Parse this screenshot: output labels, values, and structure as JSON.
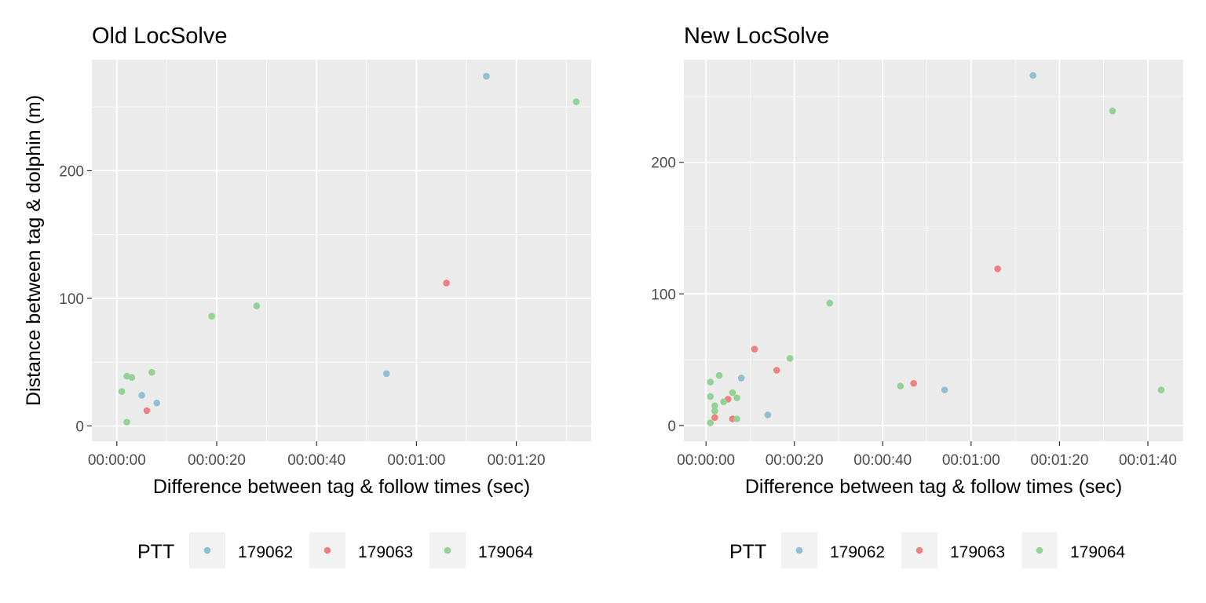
{
  "chart_data": [
    {
      "type": "scatter",
      "title": "Old LocSolve",
      "xlabel": "Difference between tag & follow times (sec)",
      "ylabel": "Distance between tag & dolphin (m)",
      "xlim": [
        -5,
        95
      ],
      "ylim": [
        -12,
        287
      ],
      "x_ticks": [
        0,
        20,
        40,
        60,
        80
      ],
      "x_tick_labels": [
        "00:00:00",
        "00:00:20",
        "00:00:40",
        "00:01:00",
        "00:01:20"
      ],
      "y_ticks": [
        0,
        100,
        200
      ],
      "y_tick_labels": [
        "0",
        "100",
        "200"
      ],
      "grid": true,
      "series": [
        {
          "name": "179062",
          "color": "#92bfd0",
          "points": [
            [
              74,
              274
            ],
            [
              54,
              41
            ],
            [
              5,
              24
            ],
            [
              8,
              18
            ]
          ]
        },
        {
          "name": "179063",
          "color": "#ef8080",
          "points": [
            [
              66,
              112
            ],
            [
              6,
              12
            ]
          ]
        },
        {
          "name": "179064",
          "color": "#93d294",
          "points": [
            [
              92,
              254
            ],
            [
              28,
              94
            ],
            [
              19,
              86
            ],
            [
              7,
              42
            ],
            [
              2,
              39
            ],
            [
              3,
              38
            ],
            [
              1,
              27
            ],
            [
              2,
              3
            ]
          ]
        }
      ]
    },
    {
      "type": "scatter",
      "title": "New LocSolve",
      "xlabel": "Difference between tag & follow times (sec)",
      "ylabel": "",
      "xlim": [
        -5,
        108
      ],
      "ylim": [
        -12,
        278
      ],
      "x_ticks": [
        0,
        20,
        40,
        60,
        80,
        100
      ],
      "x_tick_labels": [
        "00:00:00",
        "00:00:20",
        "00:00:40",
        "00:01:00",
        "00:01:20",
        "00:01:40"
      ],
      "y_ticks": [
        0,
        100,
        200
      ],
      "y_tick_labels": [
        "0",
        "100",
        "200"
      ],
      "grid": true,
      "series": [
        {
          "name": "179062",
          "color": "#92bfd0",
          "points": [
            [
              74,
              266
            ],
            [
              54,
              27
            ],
            [
              8,
              36
            ],
            [
              14,
              8
            ]
          ]
        },
        {
          "name": "179063",
          "color": "#ef8080",
          "points": [
            [
              66,
              119
            ],
            [
              47,
              32
            ],
            [
              11,
              58
            ],
            [
              16,
              42
            ],
            [
              5,
              20
            ],
            [
              6,
              5
            ],
            [
              2,
              6
            ]
          ]
        },
        {
          "name": "179064",
          "color": "#93d294",
          "points": [
            [
              92,
              239
            ],
            [
              28,
              93
            ],
            [
              19,
              51
            ],
            [
              44,
              30
            ],
            [
              103,
              27
            ],
            [
              1,
              33
            ],
            [
              1,
              22
            ],
            [
              3,
              38
            ],
            [
              4,
              18
            ],
            [
              6,
              25
            ],
            [
              7,
              21
            ],
            [
              2,
              15
            ],
            [
              2,
              11
            ],
            [
              7,
              5
            ],
            [
              1,
              2
            ]
          ]
        }
      ]
    }
  ],
  "legends": [
    {
      "title": "PTT",
      "entries": [
        {
          "label": "179062",
          "color": "#92bfd0"
        },
        {
          "label": "179063",
          "color": "#ef8080"
        },
        {
          "label": "179064",
          "color": "#93d294"
        }
      ]
    },
    {
      "title": "PTT",
      "entries": [
        {
          "label": "179062",
          "color": "#92bfd0"
        },
        {
          "label": "179063",
          "color": "#ef8080"
        },
        {
          "label": "179064",
          "color": "#93d294"
        }
      ]
    }
  ]
}
